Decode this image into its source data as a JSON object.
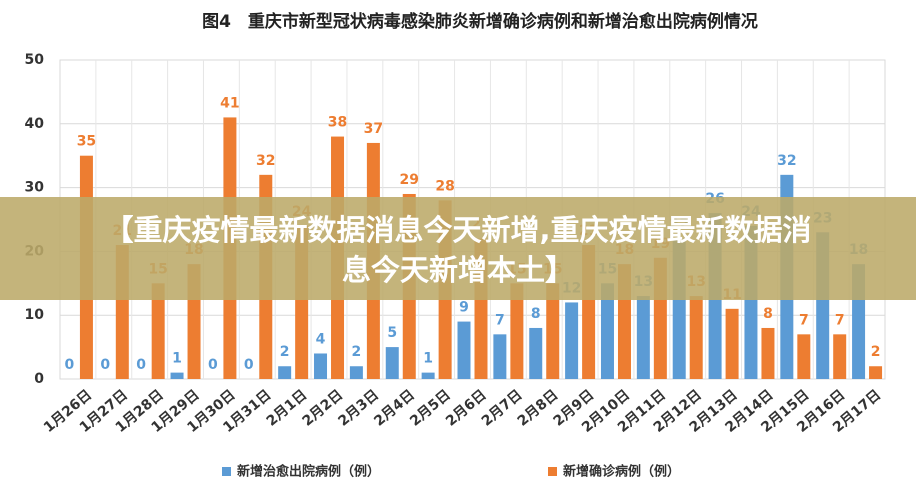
{
  "chart_data": {
    "type": "bar",
    "title": "图4　重庆市新型冠状病毒感染肺炎新增确诊病例和新增治愈出院病例情况",
    "banner": [
      "【重庆疫情最新数据消息今天新增,重庆疫情最新数据消",
      "息今天新增本土】"
    ],
    "categories": [
      "1月26日",
      "1月27日",
      "1月28日",
      "1月29日",
      "1月30日",
      "1月31日",
      "2月1日",
      "2月2日",
      "2月3日",
      "2月4日",
      "2月5日",
      "2月6日",
      "2月7日",
      "2月8日",
      "2月9日",
      "2月10日",
      "2月11日",
      "2月12日",
      "2月13日",
      "2月14日",
      "2月15日",
      "2月16日",
      "2月17日"
    ],
    "series": [
      {
        "name": "新增治愈出院病例（例）",
        "color": "#5b9bd5",
        "values": [
          0,
          0,
          0,
          1,
          0,
          0,
          2,
          4,
          2,
          5,
          1,
          9,
          7,
          8,
          12,
          15,
          13,
          22,
          26,
          24,
          32,
          23,
          18
        ]
      },
      {
        "name": "新增确诊病例（例）",
        "color": "#ed7d31",
        "values": [
          35,
          21,
          15,
          18,
          41,
          32,
          24,
          38,
          37,
          29,
          28,
          22,
          15,
          15,
          21,
          18,
          19,
          13,
          11,
          8,
          7,
          7,
          2
        ]
      }
    ],
    "ylim": [
      0,
      50
    ],
    "yticks": [
      0,
      10,
      20,
      30,
      40,
      50
    ],
    "grid": true,
    "legend": "bottom"
  }
}
